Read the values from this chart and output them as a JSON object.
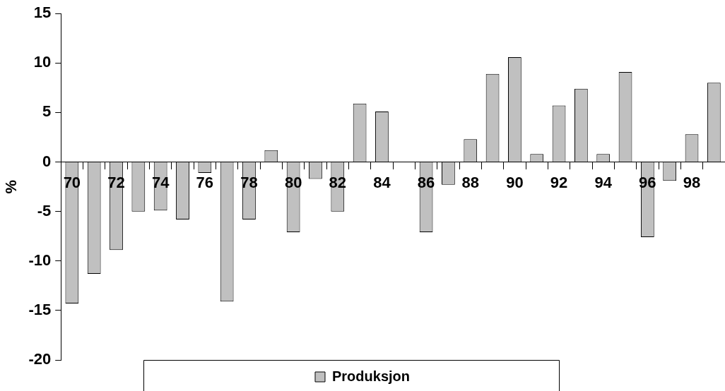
{
  "chart_data": {
    "type": "bar",
    "ylabel": "%",
    "categories": [
      "70",
      null,
      "72",
      null,
      "74",
      null,
      "76",
      null,
      "78",
      null,
      "80",
      null,
      "82",
      null,
      "84",
      null,
      "86",
      null,
      "88",
      null,
      "90",
      null,
      "92",
      null,
      "94",
      null,
      "96",
      null,
      "98",
      null
    ],
    "series": [
      {
        "name": "Produksjon",
        "color": "#c0c0c0",
        "values": [
          -14.3,
          -11.3,
          -8.9,
          -5.0,
          -4.9,
          -5.8,
          -1.1,
          -14.1,
          -5.8,
          1.2,
          -7.1,
          -1.7,
          -5.0,
          5.9,
          5.1,
          0,
          -7.1,
          -2.3,
          2.3,
          8.9,
          10.6,
          0.8,
          5.7,
          7.4,
          0.8,
          9.1,
          -7.6,
          -1.9,
          2.8,
          8.0
        ]
      }
    ],
    "ylim": [
      -20,
      15
    ],
    "yticks": [
      -20,
      -15,
      -10,
      -5,
      0,
      5,
      10,
      15
    ],
    "grid": false,
    "legend": "bottom"
  }
}
